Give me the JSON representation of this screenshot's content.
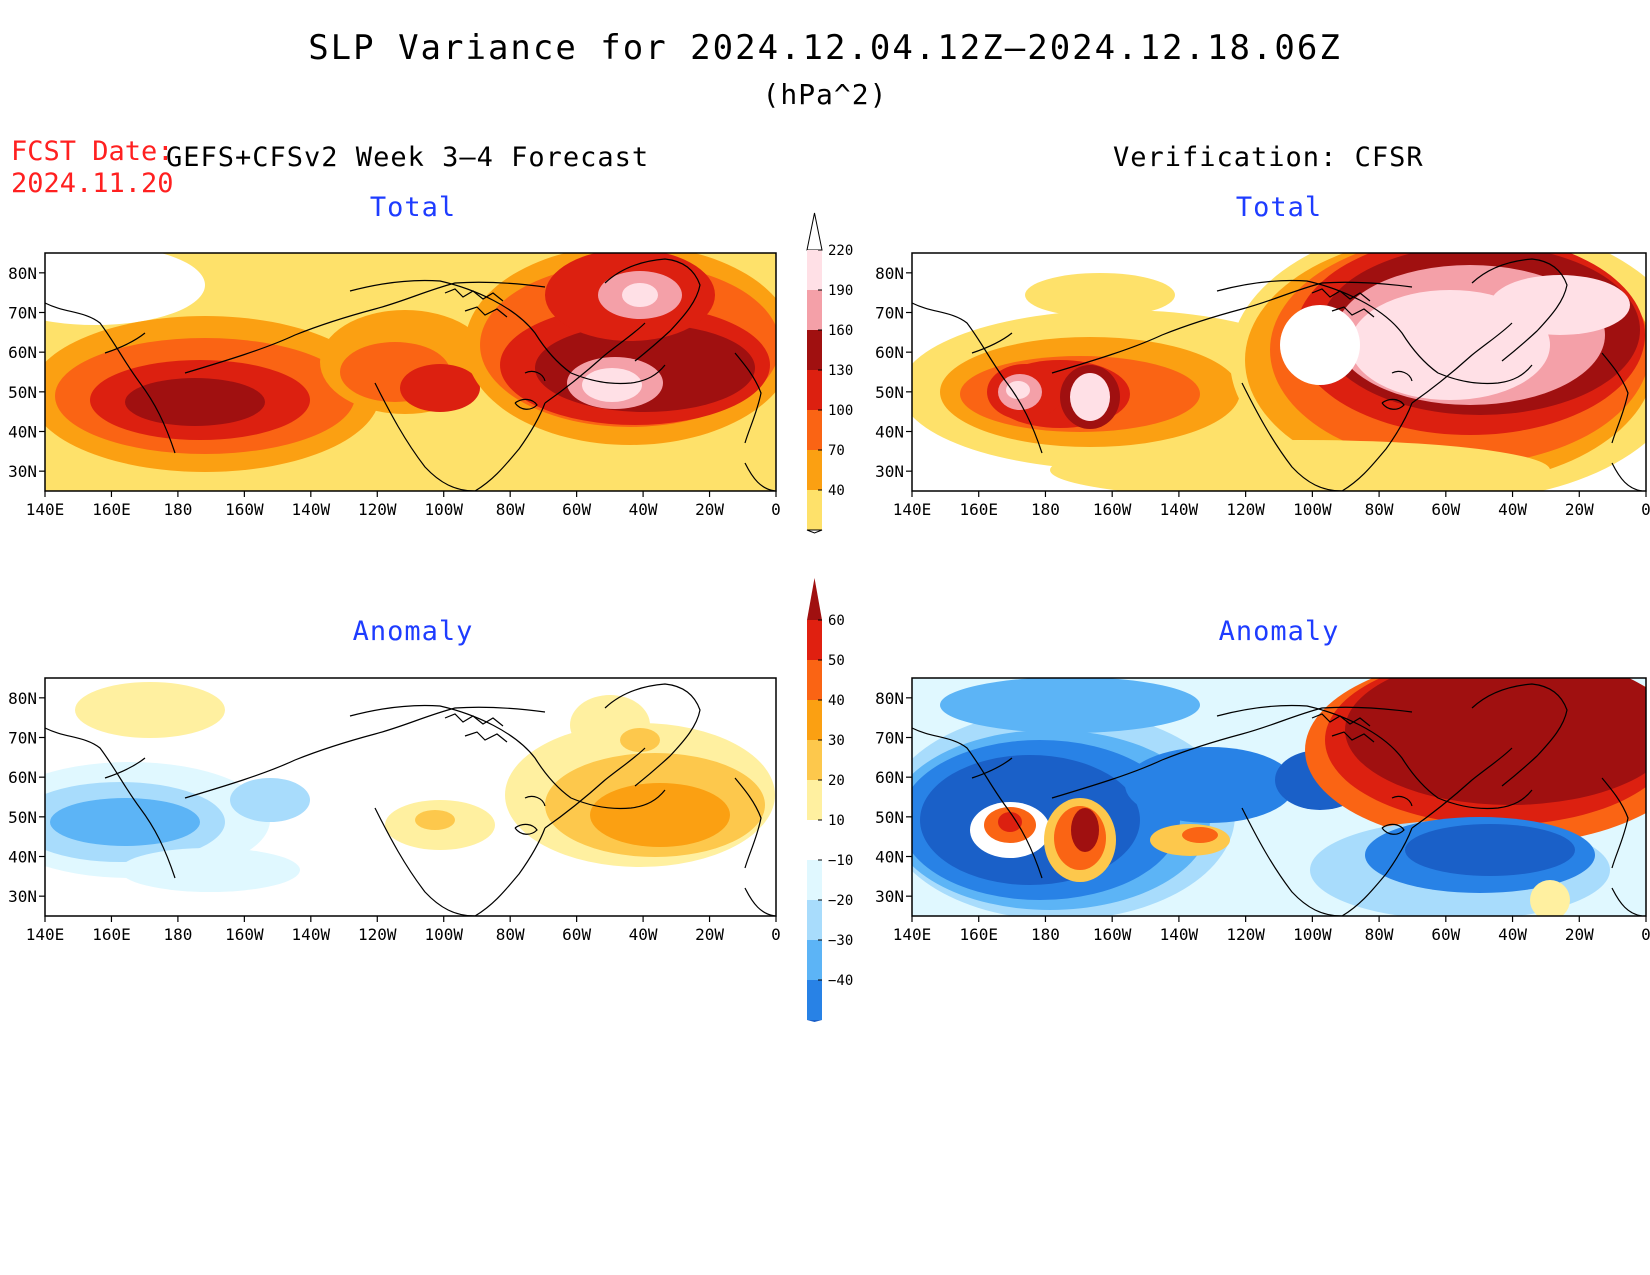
{
  "header": {
    "title": "SLP Variance for 2024.12.04.12Z–2024.12.18.06Z",
    "units": "(hPa^2)",
    "fcst_label": "FCST Date:",
    "fcst_date": "2024.11.20",
    "left_heading": "GEFS+CFSv2 Week 3–4 Forecast",
    "right_heading": "Verification: CFSR"
  },
  "panels": {
    "fcst_total": {
      "title": "Total"
    },
    "verif_total": {
      "title": "Total"
    },
    "fcst_anom": {
      "title": "Anomaly"
    },
    "verif_anom": {
      "title": "Anomaly"
    }
  },
  "axes": {
    "lon_labels": [
      "140E",
      "160E",
      "180",
      "160W",
      "140W",
      "120W",
      "100W",
      "80W",
      "60W",
      "40W",
      "20W",
      "0"
    ],
    "lat_labels": [
      "80N",
      "70N",
      "60N",
      "50N",
      "40N",
      "30N"
    ],
    "lon_range": [
      140,
      360
    ],
    "lat_range": [
      25,
      85
    ]
  },
  "colorbars": {
    "total": {
      "labels": [
        "220",
        "190",
        "160",
        "130",
        "100",
        "70",
        "40"
      ],
      "colors": [
        "#ffe0e6",
        "#f4a0a8",
        "#a01010",
        "#dc2010",
        "#fa6414",
        "#fba012",
        "#fee16a"
      ]
    },
    "anomaly": {
      "labels": [
        "60",
        "50",
        "40",
        "30",
        "20",
        "10",
        "−10",
        "−20",
        "−30",
        "−40"
      ],
      "top_color": "#a01010",
      "colors": [
        "#e02010",
        "#fa6414",
        "#fba012",
        "#fdc84c",
        "#fff0a0",
        "#ffffff",
        "#e0f8ff",
        "#a8dcfc",
        "#5cb4f6",
        "#2882e6"
      ],
      "bottom_color": "#1a60c8"
    }
  }
}
